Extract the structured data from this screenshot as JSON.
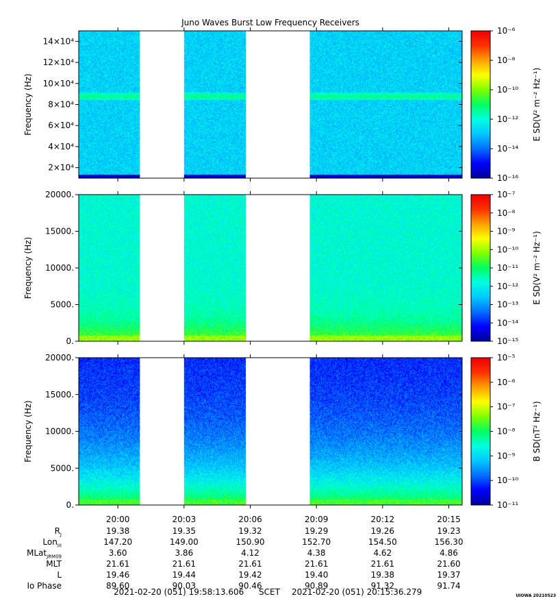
{
  "title": "Juno Waves Burst Low Frequency Receivers",
  "colors": {
    "background": "#ffffff",
    "data_gap": "#ffffff",
    "colormap": [
      "#00009a",
      "#0000ff",
      "#0070ff",
      "#00c8ff",
      "#00ffe0",
      "#00ff60",
      "#80ff00",
      "#ffff00",
      "#ffa000",
      "#ff3000",
      "#ee0000"
    ]
  },
  "chart_data": [
    {
      "type": "heatmap",
      "name": "panel-1",
      "ylabel": "Frequency (Hz)",
      "ylim": [
        10000,
        150000
      ],
      "yticks": [
        {
          "value": 20000,
          "label": "2×10⁴"
        },
        {
          "value": 40000,
          "label": "4×10⁴"
        },
        {
          "value": 60000,
          "label": "6×10⁴"
        },
        {
          "value": 80000,
          "label": "8×10⁴"
        },
        {
          "value": 100000,
          "label": "10×10⁴"
        },
        {
          "value": 120000,
          "label": "12×10⁴"
        },
        {
          "value": 140000,
          "label": "14×10⁴"
        }
      ],
      "colorbar": {
        "label": "E SD(V² m⁻² Hz⁻¹)",
        "scale": "log",
        "range": [
          1e-16,
          1e-06
        ],
        "ticks": [
          "10⁻¹⁶",
          "10⁻¹⁴",
          "10⁻¹²",
          "10⁻¹⁰",
          "10⁻⁸",
          "10⁻⁶"
        ]
      },
      "baseline_level": 0.32,
      "bottom_band_level": 0.05,
      "line_feature": {
        "frequency": 88000,
        "level": 0.48
      }
    },
    {
      "type": "heatmap",
      "name": "panel-2",
      "ylabel": "Frequency (Hz)",
      "ylim": [
        0,
        20000
      ],
      "yticks": [
        {
          "value": 0,
          "label": "0."
        },
        {
          "value": 5000,
          "label": "5000."
        },
        {
          "value": 10000,
          "label": "10000."
        },
        {
          "value": 15000,
          "label": "15000."
        },
        {
          "value": 20000,
          "label": "20000."
        }
      ],
      "colorbar": {
        "label": "E SD(V² m⁻² Hz⁻¹)",
        "scale": "log",
        "range": [
          1e-15,
          1e-07
        ],
        "ticks": [
          "10⁻¹⁵",
          "10⁻¹⁴",
          "10⁻¹³",
          "10⁻¹²",
          "10⁻¹¹",
          "10⁻¹⁰",
          "10⁻⁹",
          "10⁻⁸",
          "10⁻⁷"
        ]
      },
      "baseline_level": 0.4,
      "low_freq_enhancement_level": 0.62
    },
    {
      "type": "heatmap",
      "name": "panel-3",
      "ylabel": "Frequency (Hz)",
      "ylim": [
        0,
        20000
      ],
      "yticks": [
        {
          "value": 0,
          "label": "0."
        },
        {
          "value": 5000,
          "label": "5000."
        },
        {
          "value": 10000,
          "label": "10000."
        },
        {
          "value": 15000,
          "label": "15000."
        },
        {
          "value": 20000,
          "label": "20000."
        }
      ],
      "colorbar": {
        "label": "B SD(nT² Hz⁻¹)",
        "scale": "log",
        "range": [
          1e-11,
          0.0001
        ],
        "ticks": [
          "10⁻¹¹",
          "10⁻¹⁰",
          "10⁻⁹",
          "10⁻⁸",
          "10⁻⁷",
          "10⁻⁶",
          "10⁻⁵"
        ]
      },
      "baseline_level": 0.12,
      "low_freq_enhancement_level": 0.55
    }
  ],
  "time_axis": {
    "start_minute": 1198.2269,
    "end_minute": 1215.6047,
    "ticks": [
      {
        "minute": 1200,
        "label": "20:00"
      },
      {
        "minute": 1203,
        "label": "20:03"
      },
      {
        "minute": 1206,
        "label": "20:06"
      },
      {
        "minute": 1209,
        "label": "20:09"
      },
      {
        "minute": 1212,
        "label": "20:12"
      },
      {
        "minute": 1215,
        "label": "20:15"
      }
    ],
    "data_intervals": [
      {
        "start": 1198.2269,
        "end": 1201.0
      },
      {
        "start": 1203.0,
        "end": 1205.8
      },
      {
        "start": 1208.7,
        "end": 1215.6047
      }
    ]
  },
  "ephemeris": {
    "rows": [
      {
        "label": "R",
        "sub": "J",
        "values": [
          "19.38",
          "19.35",
          "19.32",
          "19.29",
          "19.26",
          "19.23"
        ]
      },
      {
        "label": "Lon",
        "sub": "III",
        "values": [
          "147.20",
          "149.00",
          "150.90",
          "152.70",
          "154.50",
          "156.30"
        ]
      },
      {
        "label": "MLat",
        "sub": "JRM09",
        "values": [
          "3.60",
          "3.86",
          "4.12",
          "4.38",
          "4.62",
          "4.86"
        ]
      },
      {
        "label": "MLT",
        "sub": "",
        "values": [
          "21.61",
          "21.61",
          "21.61",
          "21.61",
          "21.61",
          "21.60"
        ]
      },
      {
        "label": "L",
        "sub": "",
        "values": [
          "19.46",
          "19.44",
          "19.42",
          "19.40",
          "19.38",
          "19.37"
        ]
      },
      {
        "label": "Io Phase",
        "sub": "",
        "values": [
          "89.60",
          "90.03",
          "90.46",
          "90.89",
          "91.32",
          "91.74"
        ]
      }
    ]
  },
  "footer": {
    "start": "2021-02-20 (051) 19:58:13.606",
    "scet": "SCET",
    "end": "2021-02-20 (051) 20:15:36.279",
    "stamp": "UIOWA 20210523"
  }
}
